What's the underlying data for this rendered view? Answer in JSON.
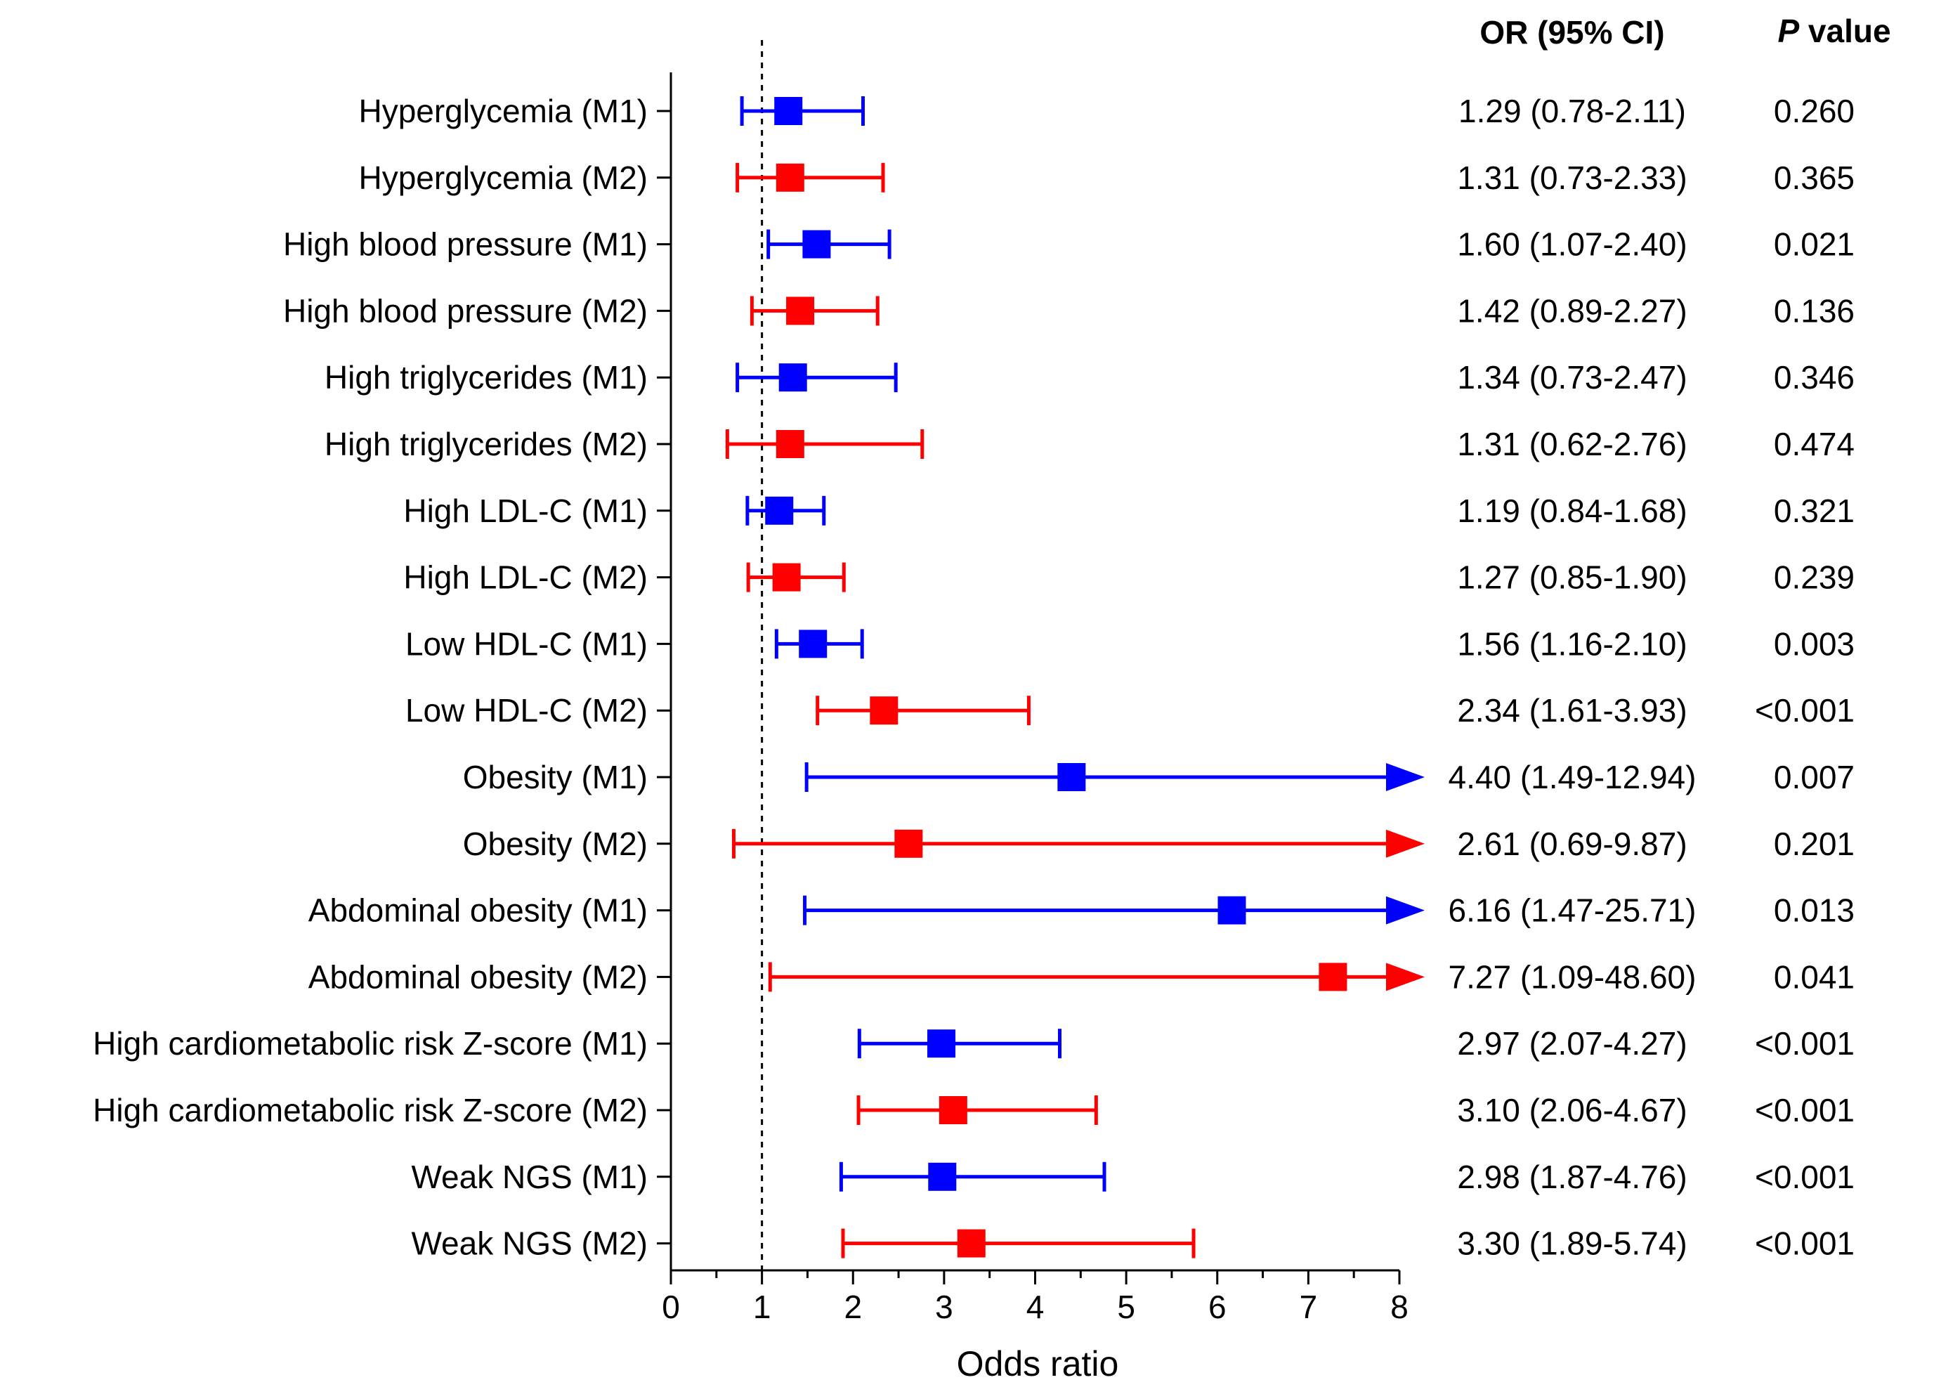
{
  "chart_data": {
    "type": "forest",
    "xlabel": "Odds ratio",
    "xlim": [
      0,
      8
    ],
    "x_ticks": [
      "0",
      "1",
      "2",
      "3",
      "4",
      "5",
      "6",
      "7",
      "8"
    ],
    "reference_line": 1,
    "columns": {
      "or_header": "OR (95% CI)",
      "p_header_italic": "P",
      "p_header_rest": " value"
    },
    "colors": {
      "M1": "#0000ff",
      "M2": "#ff0000"
    },
    "rows": [
      {
        "label": "Hyperglycemia (M1)",
        "model": "M1",
        "or": 1.29,
        "lo": 0.78,
        "hi": 2.11,
        "arrow": false,
        "or_text": "1.29 (0.78-2.11)",
        "p_text": "0.260"
      },
      {
        "label": "Hyperglycemia (M2)",
        "model": "M2",
        "or": 1.31,
        "lo": 0.73,
        "hi": 2.33,
        "arrow": false,
        "or_text": "1.31 (0.73-2.33)",
        "p_text": "0.365"
      },
      {
        "label": "High blood pressure (M1)",
        "model": "M1",
        "or": 1.6,
        "lo": 1.07,
        "hi": 2.4,
        "arrow": false,
        "or_text": "1.60 (1.07-2.40)",
        "p_text": "0.021"
      },
      {
        "label": "High blood pressure (M2)",
        "model": "M2",
        "or": 1.42,
        "lo": 0.89,
        "hi": 2.27,
        "arrow": false,
        "or_text": "1.42 (0.89-2.27)",
        "p_text": "0.136"
      },
      {
        "label": "High triglycerides (M1)",
        "model": "M1",
        "or": 1.34,
        "lo": 0.73,
        "hi": 2.47,
        "arrow": false,
        "or_text": "1.34 (0.73-2.47)",
        "p_text": "0.346"
      },
      {
        "label": "High triglycerides (M2)",
        "model": "M2",
        "or": 1.31,
        "lo": 0.62,
        "hi": 2.76,
        "arrow": false,
        "or_text": "1.31 (0.62-2.76)",
        "p_text": "0.474"
      },
      {
        "label": "High LDL-C (M1)",
        "model": "M1",
        "or": 1.19,
        "lo": 0.84,
        "hi": 1.68,
        "arrow": false,
        "or_text": "1.19 (0.84-1.68)",
        "p_text": "0.321"
      },
      {
        "label": "High LDL-C (M2)",
        "model": "M2",
        "or": 1.27,
        "lo": 0.85,
        "hi": 1.9,
        "arrow": false,
        "or_text": "1.27 (0.85-1.90)",
        "p_text": "0.239"
      },
      {
        "label": "Low HDL-C (M1)",
        "model": "M1",
        "or": 1.56,
        "lo": 1.16,
        "hi": 2.1,
        "arrow": false,
        "or_text": "1.56 (1.16-2.10)",
        "p_text": "0.003"
      },
      {
        "label": "Low HDL-C (M2)",
        "model": "M2",
        "or": 2.34,
        "lo": 1.61,
        "hi": 3.93,
        "arrow": false,
        "or_text": "2.34 (1.61-3.93)",
        "p_text": "<0.001"
      },
      {
        "label": "Obesity (M1)",
        "model": "M1",
        "or": 4.4,
        "lo": 1.49,
        "hi": 12.94,
        "arrow": true,
        "or_text": "4.40 (1.49-12.94)",
        "p_text": "0.007"
      },
      {
        "label": "Obesity (M2)",
        "model": "M2",
        "or": 2.61,
        "lo": 0.69,
        "hi": 9.87,
        "arrow": true,
        "or_text": "2.61 (0.69-9.87)",
        "p_text": "0.201"
      },
      {
        "label": "Abdominal obesity (M1)",
        "model": "M1",
        "or": 6.16,
        "lo": 1.47,
        "hi": 25.71,
        "arrow": true,
        "or_text": "6.16 (1.47-25.71)",
        "p_text": "0.013"
      },
      {
        "label": "Abdominal obesity (M2)",
        "model": "M2",
        "or": 7.27,
        "lo": 1.09,
        "hi": 48.6,
        "arrow": true,
        "or_text": "7.27 (1.09-48.60)",
        "p_text": "0.041"
      },
      {
        "label": "High cardiometabolic risk Z-score (M1)",
        "model": "M1",
        "or": 2.97,
        "lo": 2.07,
        "hi": 4.27,
        "arrow": false,
        "or_text": "2.97 (2.07-4.27)",
        "p_text": "<0.001"
      },
      {
        "label": "High cardiometabolic risk Z-score (M2)",
        "model": "M2",
        "or": 3.1,
        "lo": 2.06,
        "hi": 4.67,
        "arrow": false,
        "or_text": "3.10 (2.06-4.67)",
        "p_text": "<0.001"
      },
      {
        "label": "Weak NGS (M1)",
        "model": "M1",
        "or": 2.98,
        "lo": 1.87,
        "hi": 4.76,
        "arrow": false,
        "or_text": "2.98 (1.87-4.76)",
        "p_text": "<0.001"
      },
      {
        "label": "Weak NGS (M2)",
        "model": "M2",
        "or": 3.3,
        "lo": 1.89,
        "hi": 5.74,
        "arrow": false,
        "or_text": "3.30 (1.89-5.74)",
        "p_text": "<0.001"
      }
    ]
  }
}
